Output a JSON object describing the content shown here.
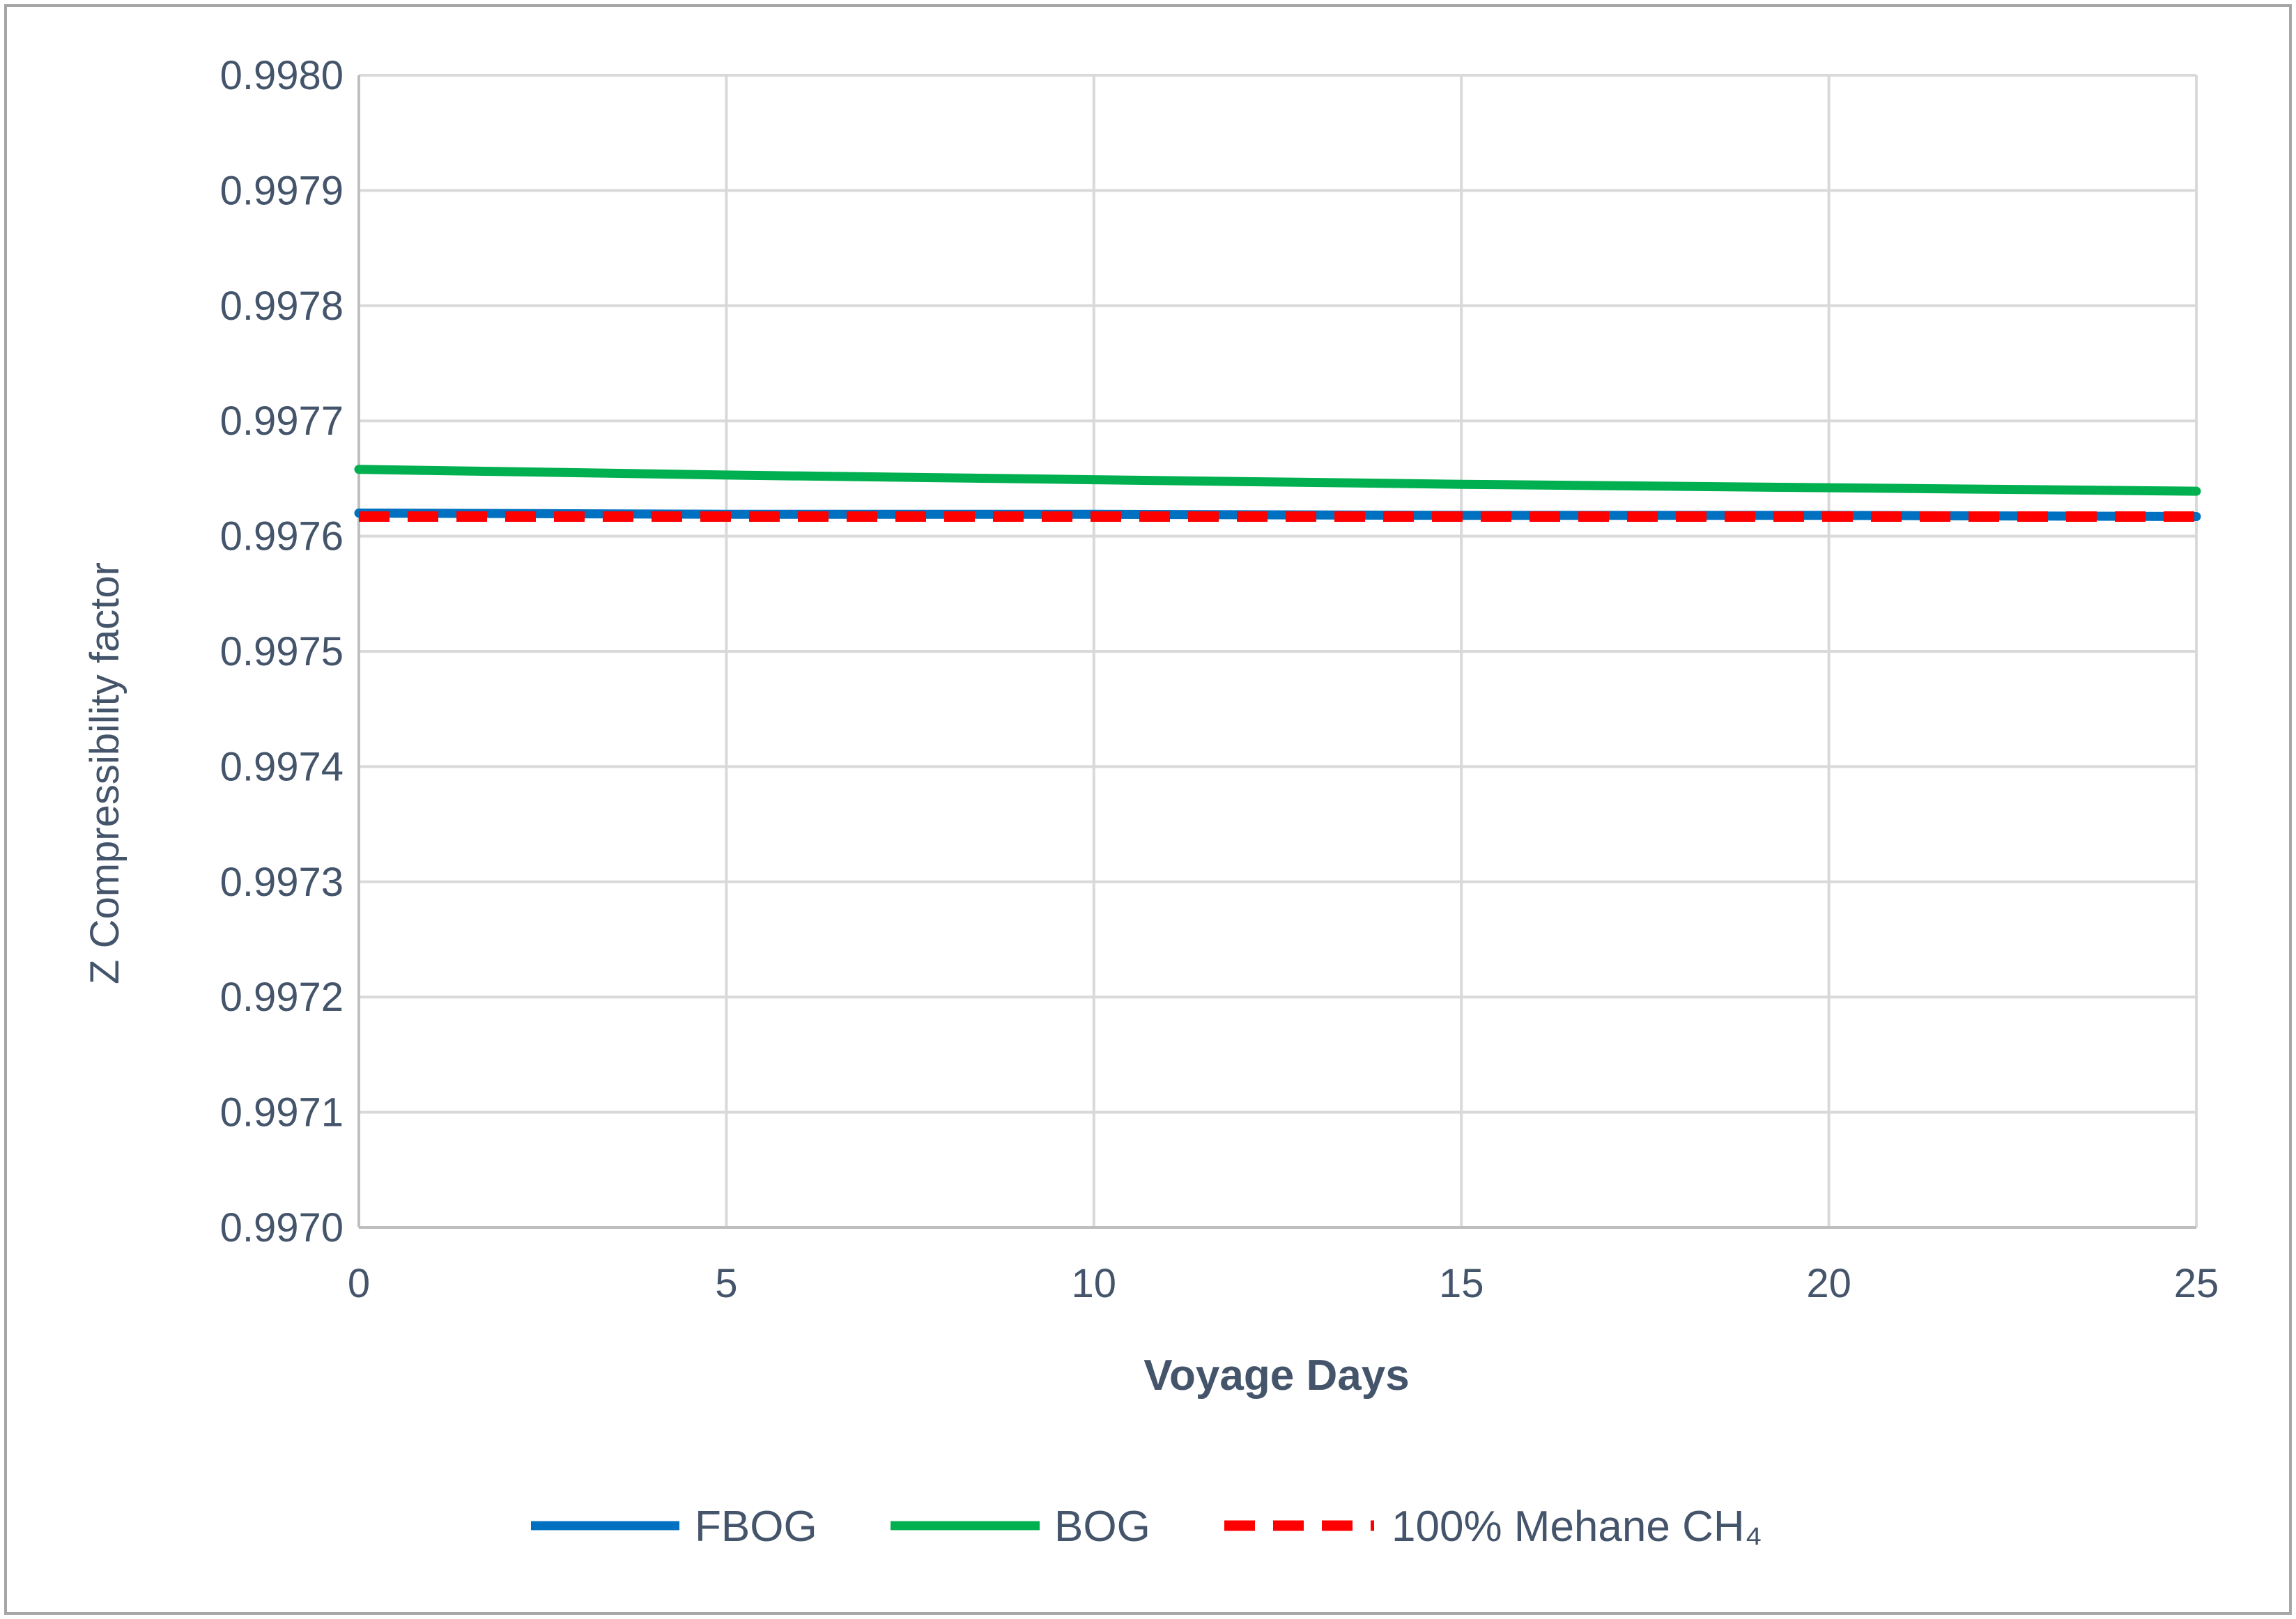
{
  "chart_data": {
    "type": "line",
    "title": "",
    "xlabel": "Voyage Days",
    "ylabel": "Z  Compressibility  factor",
    "xlim": [
      0,
      25
    ],
    "ylim": [
      0.997,
      0.998
    ],
    "x_ticks": [
      "0",
      "5",
      "10",
      "15",
      "20",
      "25"
    ],
    "x_tick_values": [
      0,
      5,
      10,
      15,
      20,
      25
    ],
    "y_ticks": [
      "0.9970",
      "0.9971",
      "0.9972",
      "0.9973",
      "0.9974",
      "0.9975",
      "0.9976",
      "0.9977",
      "0.9978",
      "0.9979",
      "0.9980"
    ],
    "y_tick_values": [
      0.997,
      0.9971,
      0.9972,
      0.9973,
      0.9974,
      0.9975,
      0.9976,
      0.9977,
      0.9978,
      0.9979,
      0.998
    ],
    "grid": true,
    "legend_position": "bottom",
    "series": [
      {
        "name": "FBOG",
        "color": "#0070c0",
        "dash": false,
        "x": [
          0,
          5,
          10,
          15,
          20,
          25
        ],
        "y": [
          0.99762,
          0.997619,
          0.997619,
          0.997618,
          0.997618,
          0.997617
        ]
      },
      {
        "name": "BOG",
        "color": "#00b050",
        "dash": false,
        "x": [
          0,
          5,
          10,
          15,
          20,
          25
        ],
        "y": [
          0.997658,
          0.997653,
          0.997649,
          0.997645,
          0.997642,
          0.997639
        ]
      },
      {
        "name": "100% Mehane CH₄",
        "color": "#ff0000",
        "dash": true,
        "x": [
          0,
          5,
          10,
          15,
          20,
          25
        ],
        "y": [
          0.997617,
          0.997617,
          0.997617,
          0.997617,
          0.997617,
          0.997617
        ]
      }
    ],
    "colors": {
      "grid": "#d9d9d9",
      "axis": "#bfbfbf",
      "text": "#44546a",
      "frame": "#a6a6a6"
    }
  }
}
